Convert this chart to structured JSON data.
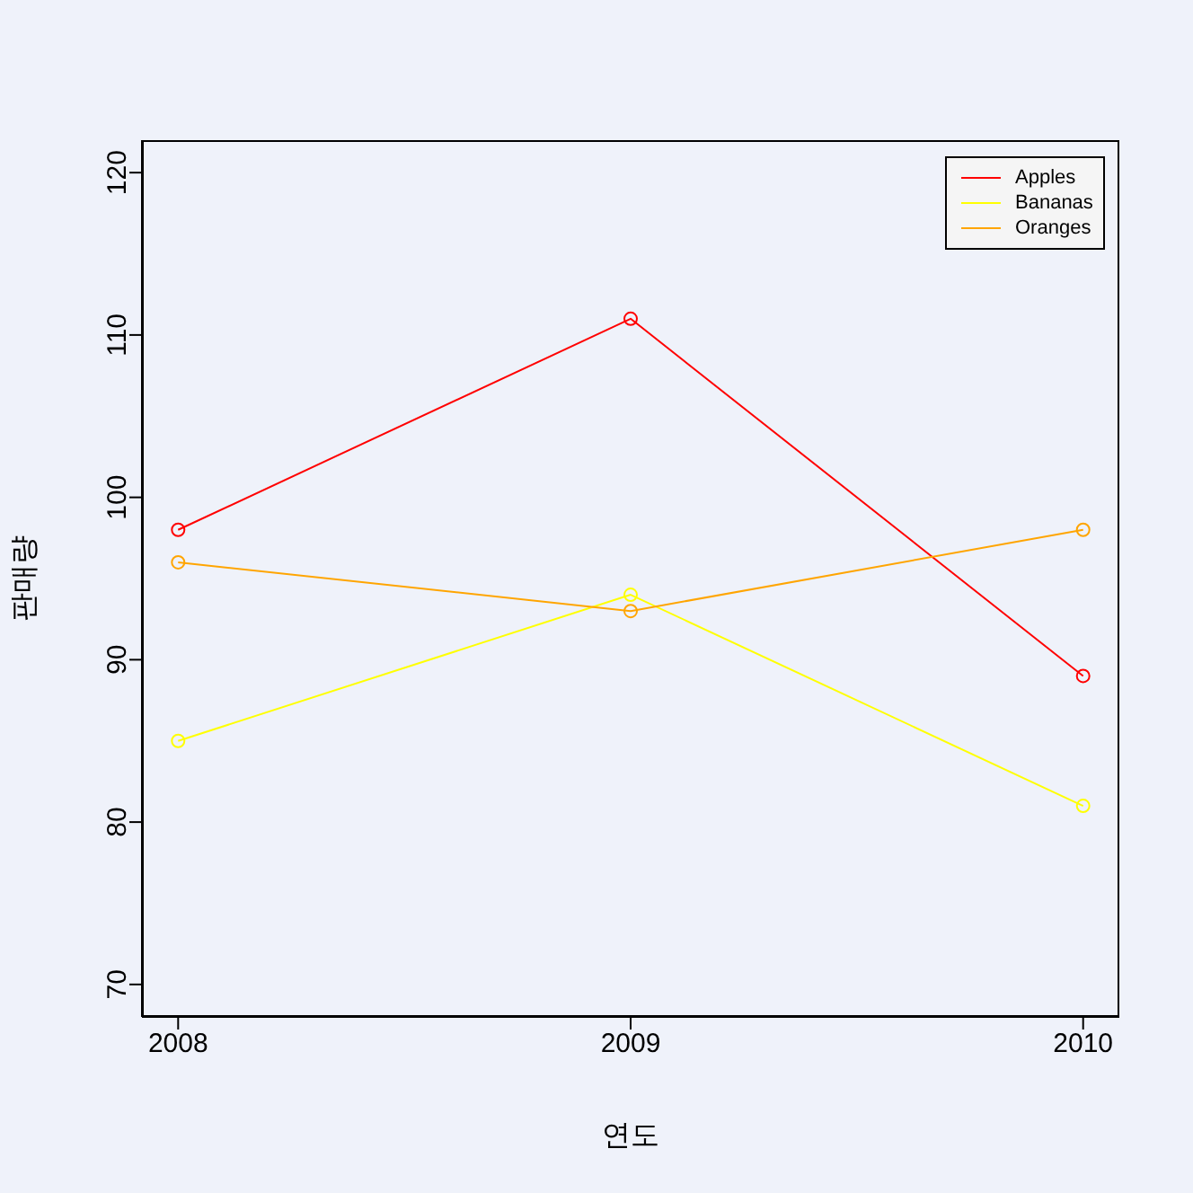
{
  "chart_data": {
    "type": "line",
    "xlabel": "연도",
    "ylabel": "판매량",
    "x": [
      2008,
      2009,
      2010
    ],
    "series": [
      {
        "name": "Apples",
        "color": "#ff0000",
        "values": [
          98,
          111,
          89
        ]
      },
      {
        "name": "Bananas",
        "color": "#ffff00",
        "values": [
          85,
          94,
          81
        ]
      },
      {
        "name": "Oranges",
        "color": "#ffa500",
        "values": [
          96,
          93,
          98
        ]
      }
    ],
    "xlim": [
      2007.92,
      2010.08
    ],
    "xticks": [
      2008,
      2009,
      2010
    ],
    "ylim": [
      68,
      122
    ],
    "yticks": [
      70,
      80,
      90,
      100,
      110,
      120
    ],
    "grid": false,
    "legend": "top right",
    "marker": "circle",
    "line_style": "solid"
  }
}
